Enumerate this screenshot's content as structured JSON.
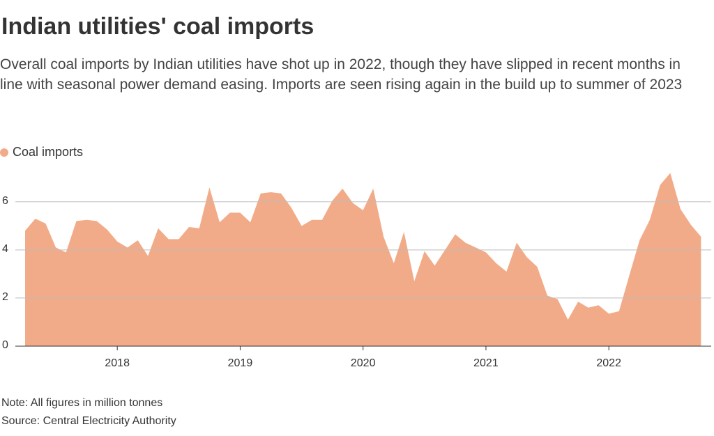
{
  "chart_data": {
    "type": "area",
    "title": "Indian utilities' coal imports",
    "subtitle": "Overall coal imports by Indian utilities have shot up in 2022, though they have slipped in recent months in line with seasonal power demand easing. Imports are seen rising again in the build up to summer of 2023",
    "note": "Note: All figures in million tonnes",
    "source": "Source: Central Electricity Authority",
    "x": [
      2017.25,
      2017.333,
      2017.417,
      2017.5,
      2017.583,
      2017.667,
      2017.75,
      2017.833,
      2017.917,
      2018,
      2018.083,
      2018.167,
      2018.25,
      2018.333,
      2018.417,
      2018.5,
      2018.583,
      2018.667,
      2018.75,
      2018.833,
      2018.917,
      2019,
      2019.083,
      2019.167,
      2019.25,
      2019.333,
      2019.417,
      2019.5,
      2019.583,
      2019.667,
      2019.75,
      2019.833,
      2019.917,
      2020,
      2020.083,
      2020.167,
      2020.25,
      2020.333,
      2020.417,
      2020.5,
      2020.583,
      2020.667,
      2020.75,
      2020.833,
      2020.917,
      2021,
      2021.083,
      2021.167,
      2021.25,
      2021.333,
      2021.417,
      2021.5,
      2021.583,
      2021.667,
      2021.75,
      2021.833,
      2021.917,
      2022,
      2022.083,
      2022.167,
      2022.25,
      2022.333,
      2022.417,
      2022.5,
      2022.583,
      2022.667,
      2022.75
    ],
    "series": [
      {
        "name": "Coal imports",
        "color": "#f2ab88",
        "values": [
          4.8,
          5.3,
          5.1,
          4.1,
          3.9,
          5.2,
          5.25,
          5.2,
          4.85,
          4.35,
          4.1,
          4.4,
          3.75,
          4.9,
          4.45,
          4.45,
          4.95,
          4.9,
          6.6,
          5.15,
          5.55,
          5.55,
          5.15,
          6.35,
          6.4,
          6.35,
          5.75,
          5.0,
          5.25,
          5.25,
          6.05,
          6.55,
          5.95,
          5.65,
          6.55,
          4.55,
          3.45,
          4.75,
          2.7,
          3.95,
          3.35,
          4.0,
          4.65,
          4.3,
          4.1,
          3.9,
          3.45,
          3.1,
          4.3,
          3.7,
          3.3,
          2.1,
          1.95,
          1.1,
          1.85,
          1.6,
          1.7,
          1.35,
          1.45,
          2.95,
          4.4,
          5.25,
          6.7,
          7.2,
          5.7,
          5.05,
          4.55
        ]
      }
    ],
    "xlim": [
      2017.25,
      2022.833
    ],
    "xticks": [
      2018,
      2019,
      2020,
      2021,
      2022
    ],
    "ylim": [
      0,
      7.5
    ],
    "yticks": [
      0,
      2,
      4,
      6
    ],
    "grid": true
  }
}
